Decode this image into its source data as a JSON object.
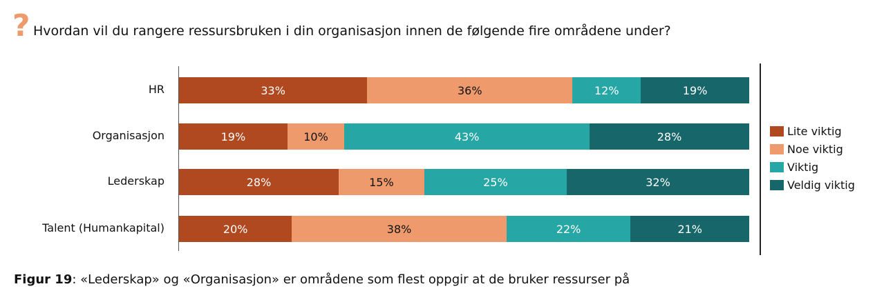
{
  "title": "Hvordan vil du rangere ressursbruken i din organisasjon innen de følgende fire områdene under?",
  "question_icon": "?",
  "caption": {
    "label": "Figur 19",
    "text": ": «Lederskap» og «Organisasjon» er områdene som flest oppgir at de bruker ressurser på"
  },
  "chart_data": {
    "type": "bar",
    "orientation": "horizontal",
    "stacked": true,
    "legend_position": "right",
    "categories": [
      "HR",
      "Organisasjon",
      "Lederskap",
      "Talent (Humankapital)"
    ],
    "series": [
      {
        "name": "Lite viktig",
        "color": "#B0491F",
        "values": [
          33,
          19,
          28,
          20
        ]
      },
      {
        "name": "Noe viktig",
        "color": "#EE9A6C",
        "values": [
          36,
          10,
          15,
          38
        ]
      },
      {
        "name": "Viktig",
        "color": "#26A6A4",
        "values": [
          12,
          43,
          25,
          22
        ]
      },
      {
        "name": "Veldig viktig",
        "color": "#17666A",
        "values": [
          19,
          28,
          32,
          21
        ]
      }
    ],
    "unit": "%"
  }
}
